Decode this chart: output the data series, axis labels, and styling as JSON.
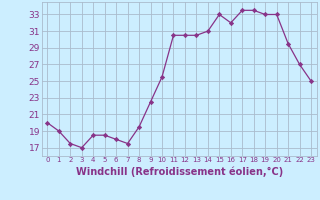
{
  "x": [
    0,
    1,
    2,
    3,
    4,
    5,
    6,
    7,
    8,
    9,
    10,
    11,
    12,
    13,
    14,
    15,
    16,
    17,
    18,
    19,
    20,
    21,
    22,
    23
  ],
  "y": [
    20,
    19,
    17.5,
    17,
    18.5,
    18.5,
    18,
    17.5,
    19.5,
    22.5,
    25.5,
    30.5,
    30.5,
    30.5,
    31,
    33,
    32,
    33.5,
    33.5,
    33,
    33,
    29.5,
    27,
    25
  ],
  "line_color": "#883388",
  "marker": "D",
  "marker_size": 2.2,
  "bg_color": "#cceeff",
  "grid_color": "#aabbcc",
  "xlabel": "Windchill (Refroidissement éolien,°C)",
  "xlabel_color": "#883388",
  "tick_color": "#883388",
  "ylabel_ticks": [
    17,
    19,
    21,
    23,
    25,
    27,
    29,
    31,
    33
  ],
  "xlim": [
    -0.5,
    23.5
  ],
  "ylim": [
    16.0,
    34.5
  ],
  "ytick_fontsize": 6.5,
  "xtick_fontsize": 5.0,
  "xlabel_fontsize": 7.0
}
